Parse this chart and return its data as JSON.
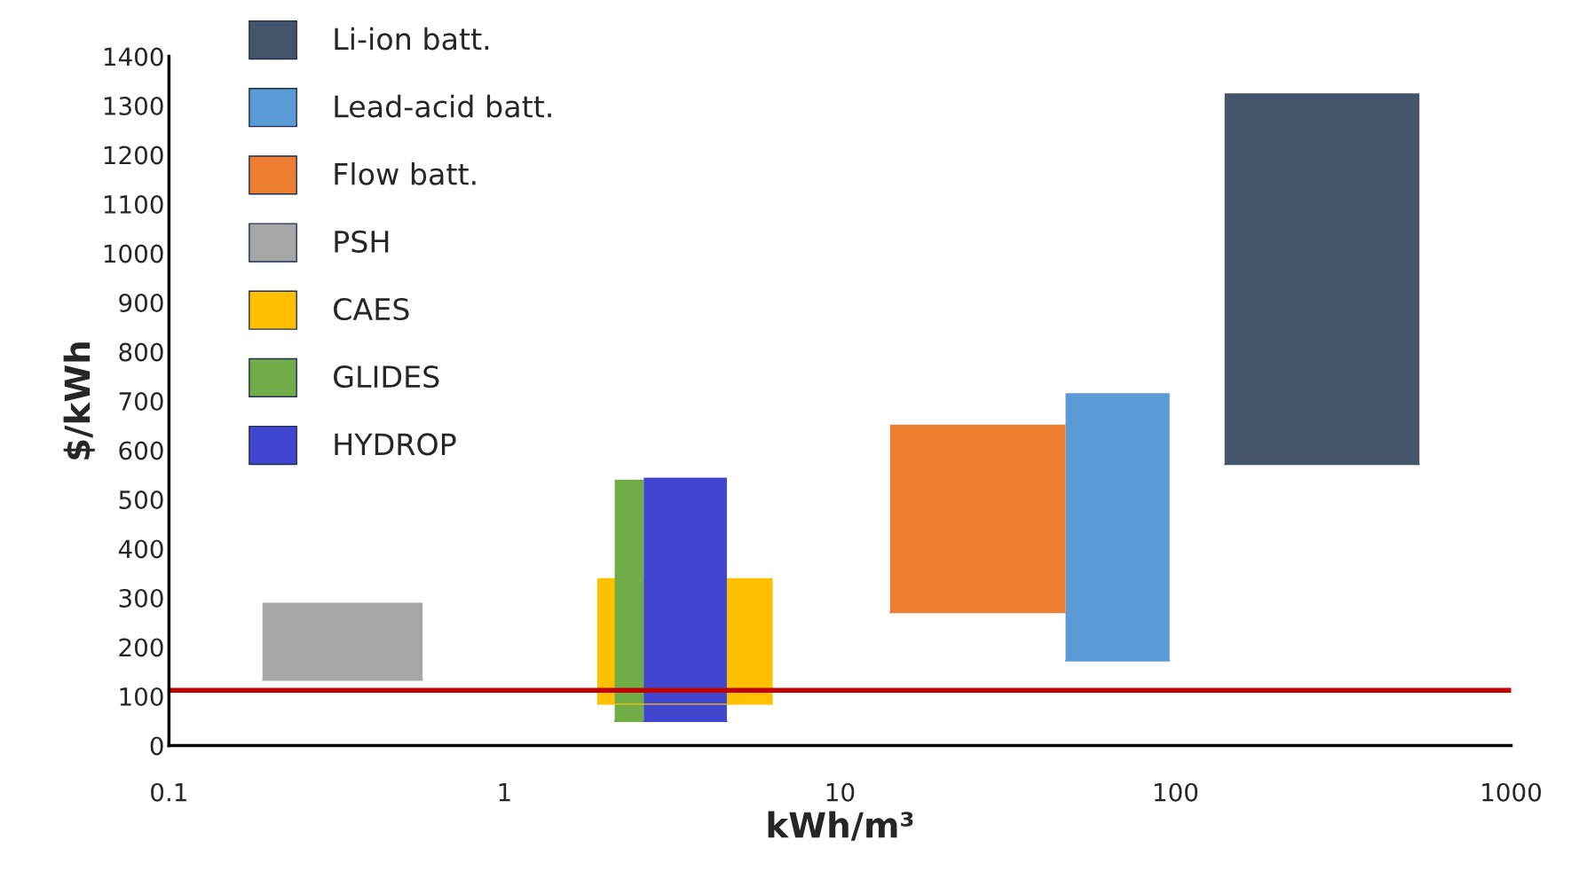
{
  "chart_data": {
    "type": "line",
    "xlabel": "kWh/m³",
    "ylabel": "$/kWh",
    "series": [
      {
        "name": "Li-ion batt.",
        "color": "#44546a",
        "x": [
          140,
          533
        ],
        "values": [
          571,
          571
        ],
        "lower": [
          571,
          571
        ],
        "upper": [
          1325,
          1325
        ]
      },
      {
        "name": "Lead-acid batt.",
        "color": "#5b9bd5",
        "x": [
          47,
          96
        ],
        "values": [
          172,
          172
        ],
        "lower": [
          172,
          172
        ],
        "upper": [
          716,
          716
        ]
      },
      {
        "name": "Flow batt.",
        "color": "#ed7d31",
        "x": [
          14.1,
          47
        ],
        "values": [
          270,
          270
        ],
        "lower": [
          270,
          270
        ],
        "upper": [
          652,
          652
        ]
      },
      {
        "name": "PSH",
        "color": "#a6a6a6",
        "x": [
          0.19,
          0.57
        ],
        "values": [
          133,
          133
        ],
        "lower": [
          133,
          133
        ],
        "upper": [
          290,
          290
        ]
      },
      {
        "name": "CAES",
        "color": "#ffc000",
        "x": [
          1.89,
          6.3
        ],
        "values": [
          84,
          84
        ],
        "lower": [
          84,
          84
        ],
        "upper": [
          340,
          340
        ]
      },
      {
        "name": "GLIDES",
        "color": "#70ad47",
        "x": [
          2.13,
          2.6
        ],
        "values": [
          49,
          49
        ],
        "lower": [
          49,
          49
        ],
        "upper": [
          540,
          540
        ]
      },
      {
        "name": "HYDROP",
        "color": "#4046cf",
        "x": [
          2.6,
          4.6
        ],
        "values": [
          49,
          49
        ],
        "lower": [
          49,
          49
        ],
        "upper": [
          544,
          544
        ]
      }
    ],
    "ref_lines": [
      {
        "axis": "y",
        "value": 112,
        "color": "#c00000"
      }
    ],
    "log": "x",
    "xlim": [
      0.1,
      1000
    ],
    "xticks": [
      0.1,
      1,
      10,
      100,
      1000
    ],
    "ylim": [
      0,
      1400
    ],
    "yticks": [
      0,
      100,
      200,
      300,
      400,
      500,
      600,
      700,
      800,
      900,
      1000,
      1100,
      1200,
      1300,
      1400
    ],
    "grid": false,
    "legend": "top left"
  }
}
